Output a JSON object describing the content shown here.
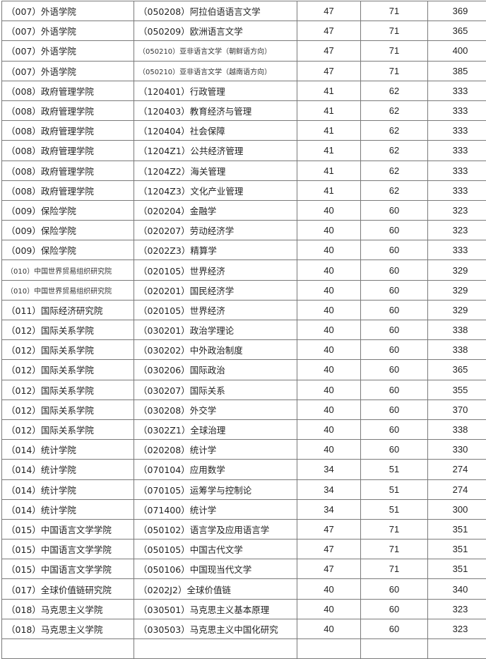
{
  "rows": [
    [
      "（007）外语学院",
      "（050208）阿拉伯语语言文学",
      "47",
      "71",
      "369"
    ],
    [
      "（007）外语学院",
      "（050209）欧洲语言文学",
      "47",
      "71",
      "365"
    ],
    [
      "（007）外语学院",
      "（050210）亚非语言文学（朝鲜语方向）",
      "47",
      "71",
      "400"
    ],
    [
      "（007）外语学院",
      "（050210）亚非语言文学（越南语方向）",
      "47",
      "71",
      "385"
    ],
    [
      "（008）政府管理学院",
      "（120401）行政管理",
      "41",
      "62",
      "333"
    ],
    [
      "（008）政府管理学院",
      "（120403）教育经济与管理",
      "41",
      "62",
      "333"
    ],
    [
      "（008）政府管理学院",
      "（120404）社会保障",
      "41",
      "62",
      "333"
    ],
    [
      "（008）政府管理学院",
      "（1204Z1）公共经济管理",
      "41",
      "62",
      "333"
    ],
    [
      "（008）政府管理学院",
      "（1204Z2）海关管理",
      "41",
      "62",
      "333"
    ],
    [
      "（008）政府管理学院",
      "（1204Z3）文化产业管理",
      "41",
      "62",
      "333"
    ],
    [
      "（009）保险学院",
      "（020204）金融学",
      "40",
      "60",
      "323"
    ],
    [
      "（009）保险学院",
      "（020207）劳动经济学",
      "40",
      "60",
      "323"
    ],
    [
      "（009）保险学院",
      "（0202Z3）精算学",
      "40",
      "60",
      "333"
    ],
    [
      "（010）中国世界贸易组织研究院",
      "（020105）世界经济",
      "40",
      "60",
      "329"
    ],
    [
      "（010）中国世界贸易组织研究院",
      "（020201）国民经济学",
      "40",
      "60",
      "329"
    ],
    [
      "（011）国际经济研究院",
      "（020105）世界经济",
      "40",
      "60",
      "329"
    ],
    [
      "（012）国际关系学院",
      "（030201）政治学理论",
      "40",
      "60",
      "338"
    ],
    [
      "（012）国际关系学院",
      "（030202）中外政治制度",
      "40",
      "60",
      "338"
    ],
    [
      "（012）国际关系学院",
      "（030206）国际政治",
      "40",
      "60",
      "365"
    ],
    [
      "（012）国际关系学院",
      "（030207）国际关系",
      "40",
      "60",
      "355"
    ],
    [
      "（012）国际关系学院",
      "（030208）外交学",
      "40",
      "60",
      "370"
    ],
    [
      "（012）国际关系学院",
      "（0302Z1）全球治理",
      "40",
      "60",
      "338"
    ],
    [
      "（014）统计学院",
      "（020208）统计学",
      "40",
      "60",
      "330"
    ],
    [
      "（014）统计学院",
      "（070104）应用数学",
      "34",
      "51",
      "274"
    ],
    [
      "（014）统计学院",
      "（070105）运筹学与控制论",
      "34",
      "51",
      "274"
    ],
    [
      "（014）统计学院",
      "（071400）统计学",
      "34",
      "51",
      "300"
    ],
    [
      "（015）中国语言文学学院",
      "（050102）语言学及应用语言学",
      "47",
      "71",
      "351"
    ],
    [
      "（015）中国语言文学学院",
      "（050105）中国古代文学",
      "47",
      "71",
      "351"
    ],
    [
      "（015）中国语言文学学院",
      "（050106）中国现当代文学",
      "47",
      "71",
      "351"
    ],
    [
      "（017）全球价值链研究院",
      "（0202J2）全球价值链",
      "40",
      "60",
      "340"
    ],
    [
      "（018）马克思主义学院",
      "（030501）马克思主义基本原理",
      "40",
      "60",
      "323"
    ],
    [
      "（018）马克思主义学院",
      "（030503）马克思主义中国化研究",
      "40",
      "60",
      "323"
    ],
    [
      "",
      "",
      "",
      "",
      ""
    ]
  ]
}
